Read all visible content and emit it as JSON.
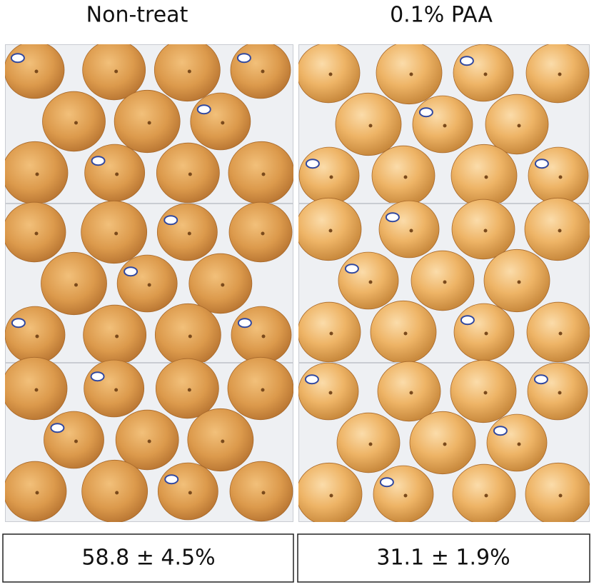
{
  "panels": [
    {
      "title": "Non-treat",
      "result": "58.8 ± 4.5%"
    },
    {
      "title": "0.1% PAA",
      "result": "31.1 ± 1.9%"
    }
  ]
}
